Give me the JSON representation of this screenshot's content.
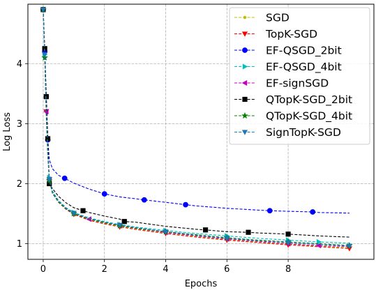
{
  "chart_data": {
    "type": "line",
    "title": "",
    "xlabel": "Epochs",
    "ylabel": "Log Loss",
    "xlim": [
      -0.5,
      10.8
    ],
    "ylim": [
      0.74,
      4.99
    ],
    "xticks": [
      0,
      2,
      4,
      6,
      8
    ],
    "yticks": [
      1,
      2,
      3,
      4
    ],
    "grid": true,
    "grid_style": "dashed",
    "legend_position": "upper right",
    "series": [
      {
        "name": "SGD",
        "color": "#bfbf00",
        "marker": "point",
        "x": [
          0.0,
          0.05,
          0.1,
          0.15,
          0.2,
          0.3,
          0.5,
          0.75,
          1.0,
          1.5,
          2.0,
          2.5,
          3.0,
          4.0,
          5.0,
          6.0,
          7.0,
          8.0,
          9.0,
          10.0
        ],
        "y": [
          4.9,
          4.15,
          3.2,
          2.5,
          2.07,
          1.85,
          1.7,
          1.58,
          1.5,
          1.4,
          1.34,
          1.29,
          1.25,
          1.18,
          1.12,
          1.07,
          1.03,
          0.99,
          0.96,
          0.93
        ]
      },
      {
        "name": "TopK-SGD",
        "color": "#ff0000",
        "marker": "triangle-down",
        "x": [
          0.0,
          0.05,
          0.1,
          0.15,
          0.2,
          0.3,
          0.5,
          0.75,
          1.0,
          1.5,
          2.0,
          2.5,
          3.0,
          4.0,
          5.0,
          6.0,
          7.0,
          8.0,
          9.0,
          10.0
        ],
        "y": [
          4.9,
          4.15,
          3.2,
          2.5,
          2.06,
          1.85,
          1.69,
          1.57,
          1.49,
          1.39,
          1.33,
          1.28,
          1.24,
          1.17,
          1.11,
          1.06,
          1.02,
          0.98,
          0.95,
          0.92
        ]
      },
      {
        "name": "EF-QSGD_2bit",
        "color": "#0000ff",
        "marker": "circle",
        "x": [
          0.0,
          0.05,
          0.1,
          0.15,
          0.2,
          0.3,
          0.5,
          0.7,
          1.0,
          1.5,
          2.0,
          2.5,
          3.0,
          3.3,
          4.0,
          4.65,
          5.0,
          6.0,
          7.0,
          7.4,
          8.0,
          8.8,
          9.0,
          10.0
        ],
        "y": [
          4.9,
          4.2,
          3.45,
          2.73,
          2.4,
          2.25,
          2.14,
          2.09,
          2.01,
          1.91,
          1.83,
          1.78,
          1.75,
          1.73,
          1.69,
          1.65,
          1.63,
          1.59,
          1.56,
          1.55,
          1.54,
          1.53,
          1.52,
          1.51
        ]
      },
      {
        "name": "EF-QSGD_4bit",
        "color": "#00bfbf",
        "marker": "triangle-right",
        "x": [
          0.0,
          0.05,
          0.1,
          0.15,
          0.2,
          0.3,
          0.5,
          0.75,
          1.0,
          1.5,
          2.0,
          2.5,
          3.0,
          4.0,
          5.0,
          6.0,
          7.0,
          8.0,
          9.0,
          10.0
        ],
        "y": [
          4.9,
          4.15,
          3.25,
          2.55,
          2.1,
          1.88,
          1.72,
          1.6,
          1.52,
          1.43,
          1.37,
          1.32,
          1.28,
          1.22,
          1.17,
          1.13,
          1.09,
          1.06,
          1.03,
          1.01
        ]
      },
      {
        "name": "EF-signSGD",
        "color": "#bf00bf",
        "marker": "triangle-left",
        "x": [
          0.0,
          0.05,
          0.1,
          0.15,
          0.2,
          0.3,
          0.5,
          0.75,
          1.0,
          1.5,
          2.0,
          2.5,
          3.0,
          4.0,
          5.0,
          6.0,
          7.0,
          8.0,
          9.0,
          10.0
        ],
        "y": [
          4.9,
          4.15,
          3.2,
          2.5,
          2.07,
          1.85,
          1.7,
          1.58,
          1.5,
          1.41,
          1.35,
          1.3,
          1.26,
          1.19,
          1.13,
          1.08,
          1.04,
          1.0,
          0.97,
          0.95
        ]
      },
      {
        "name": "QTopK-SGD_2bit",
        "color": "#000000",
        "marker": "square",
        "x": [
          0.0,
          0.05,
          0.1,
          0.15,
          0.2,
          0.3,
          0.5,
          0.75,
          1.0,
          1.3,
          1.5,
          2.0,
          2.5,
          2.65,
          3.0,
          4.0,
          5.0,
          5.3,
          6.0,
          6.7,
          7.0,
          8.0,
          9.0,
          10.0
        ],
        "y": [
          4.9,
          4.25,
          3.45,
          2.75,
          2.0,
          1.92,
          1.79,
          1.68,
          1.6,
          1.55,
          1.52,
          1.46,
          1.41,
          1.37,
          1.36,
          1.29,
          1.24,
          1.23,
          1.2,
          1.19,
          1.18,
          1.16,
          1.13,
          1.11
        ]
      },
      {
        "name": "QTopK-SGD_4bit",
        "color": "#008000",
        "marker": "star",
        "x": [
          0.0,
          0.05,
          0.1,
          0.15,
          0.2,
          0.3,
          0.5,
          0.75,
          1.0,
          1.5,
          2.0,
          2.5,
          3.0,
          4.0,
          5.0,
          6.0,
          7.0,
          8.0,
          9.0,
          10.0
        ],
        "y": [
          4.9,
          4.1,
          3.1,
          2.45,
          2.05,
          1.84,
          1.69,
          1.58,
          1.5,
          1.41,
          1.35,
          1.3,
          1.26,
          1.2,
          1.15,
          1.1,
          1.06,
          1.03,
          1.0,
          0.97
        ]
      },
      {
        "name": "SignTopK-SGD",
        "color": "#1f77b4",
        "marker": "triangle-down",
        "x": [
          0.0,
          0.05,
          0.1,
          0.15,
          0.2,
          0.3,
          0.5,
          0.75,
          1.0,
          1.5,
          2.0,
          2.5,
          3.0,
          4.0,
          5.0,
          6.0,
          7.0,
          8.0,
          9.0,
          10.0
        ],
        "y": [
          4.9,
          4.15,
          3.2,
          2.5,
          2.07,
          1.86,
          1.71,
          1.59,
          1.51,
          1.42,
          1.36,
          1.31,
          1.27,
          1.2,
          1.14,
          1.09,
          1.05,
          1.02,
          0.99,
          0.96
        ]
      }
    ]
  }
}
